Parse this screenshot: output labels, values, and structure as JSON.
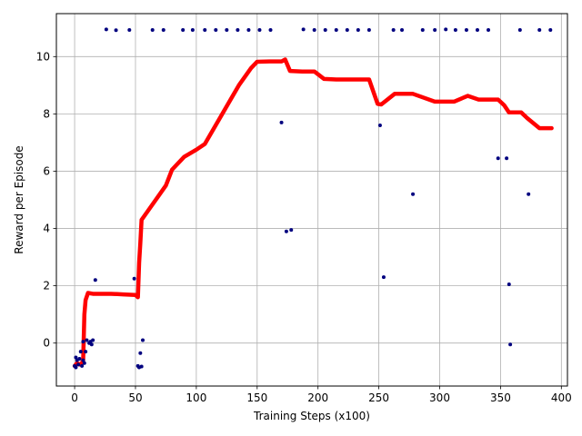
{
  "chart_data": {
    "type": "scatter",
    "title": "",
    "xlabel": "Training Steps (x100)",
    "ylabel": "Reward per Episode",
    "xlim": [
      -15,
      405
    ],
    "ylim": [
      -1.5,
      11.5
    ],
    "xticks": [
      0,
      50,
      100,
      150,
      200,
      250,
      300,
      350,
      400
    ],
    "yticks": [
      0,
      2,
      4,
      6,
      8,
      10
    ],
    "grid": true,
    "colors": {
      "points": "#00007f",
      "line": "#ff0000",
      "grid": "#b0b0b0"
    },
    "series": [
      {
        "kind": "scatter",
        "points": [
          [
            0,
            -0.8
          ],
          [
            1,
            -0.85
          ],
          [
            1,
            -0.5
          ],
          [
            2,
            -0.6
          ],
          [
            3,
            -0.75
          ],
          [
            4,
            -0.55
          ],
          [
            5,
            -0.3
          ],
          [
            6,
            -0.8
          ],
          [
            7,
            -0.6
          ],
          [
            7,
            0.05
          ],
          [
            8,
            -0.7
          ],
          [
            9,
            -0.3
          ],
          [
            10,
            0.1
          ],
          [
            12,
            0.0
          ],
          [
            13,
            0.05
          ],
          [
            14,
            -0.05
          ],
          [
            15,
            0.1
          ],
          [
            17,
            2.2
          ],
          [
            26,
            10.95
          ],
          [
            34,
            10.92
          ],
          [
            45,
            10.93
          ],
          [
            49,
            2.25
          ],
          [
            52,
            -0.8
          ],
          [
            53,
            -0.85
          ],
          [
            54,
            -0.35
          ],
          [
            55,
            -0.82
          ],
          [
            56,
            0.1
          ],
          [
            64,
            10.93
          ],
          [
            73,
            10.93
          ],
          [
            89,
            10.93
          ],
          [
            97,
            10.93
          ],
          [
            107,
            10.93
          ],
          [
            116,
            10.93
          ],
          [
            125,
            10.93
          ],
          [
            134,
            10.93
          ],
          [
            143,
            10.93
          ],
          [
            152,
            10.93
          ],
          [
            161,
            10.93
          ],
          [
            170,
            7.7
          ],
          [
            174,
            3.9
          ],
          [
            178,
            3.95
          ],
          [
            188,
            10.95
          ],
          [
            197,
            10.93
          ],
          [
            206,
            10.93
          ],
          [
            215,
            10.93
          ],
          [
            224,
            10.93
          ],
          [
            233,
            10.93
          ],
          [
            242,
            10.93
          ],
          [
            251,
            7.6
          ],
          [
            254,
            2.3
          ],
          [
            262,
            10.93
          ],
          [
            269,
            10.93
          ],
          [
            278,
            5.2
          ],
          [
            286,
            10.93
          ],
          [
            296,
            10.93
          ],
          [
            305,
            10.95
          ],
          [
            313,
            10.93
          ],
          [
            322,
            10.93
          ],
          [
            331,
            10.93
          ],
          [
            340,
            10.93
          ],
          [
            348,
            6.45
          ],
          [
            355,
            6.45
          ],
          [
            357,
            2.05
          ],
          [
            358,
            -0.05
          ],
          [
            366,
            10.93
          ],
          [
            373,
            5.2
          ],
          [
            382,
            10.93
          ],
          [
            391,
            10.93
          ]
        ]
      },
      {
        "kind": "line",
        "points": [
          [
            0,
            -0.8
          ],
          [
            2,
            -0.7
          ],
          [
            4,
            -0.75
          ],
          [
            6,
            -0.7
          ],
          [
            7,
            -0.6
          ],
          [
            8,
            1.0
          ],
          [
            9,
            1.5
          ],
          [
            11,
            1.75
          ],
          [
            15,
            1.72
          ],
          [
            20,
            1.72
          ],
          [
            30,
            1.72
          ],
          [
            40,
            1.7
          ],
          [
            50,
            1.68
          ],
          [
            52,
            1.6
          ],
          [
            53,
            2.8
          ],
          [
            54,
            3.5
          ],
          [
            55,
            4.3
          ],
          [
            60,
            4.6
          ],
          [
            70,
            5.2
          ],
          [
            75,
            5.5
          ],
          [
            80,
            6.05
          ],
          [
            90,
            6.5
          ],
          [
            100,
            6.75
          ],
          [
            107,
            6.95
          ],
          [
            120,
            7.9
          ],
          [
            135,
            9.0
          ],
          [
            145,
            9.6
          ],
          [
            150,
            9.82
          ],
          [
            160,
            9.83
          ],
          [
            170,
            9.83
          ],
          [
            173,
            9.9
          ],
          [
            177,
            9.5
          ],
          [
            187,
            9.48
          ],
          [
            197,
            9.48
          ],
          [
            205,
            9.22
          ],
          [
            215,
            9.2
          ],
          [
            230,
            9.2
          ],
          [
            242,
            9.2
          ],
          [
            249,
            8.35
          ],
          [
            252,
            8.33
          ],
          [
            263,
            8.7
          ],
          [
            278,
            8.7
          ],
          [
            296,
            8.43
          ],
          [
            312,
            8.43
          ],
          [
            323,
            8.63
          ],
          [
            332,
            8.5
          ],
          [
            348,
            8.5
          ],
          [
            353,
            8.3
          ],
          [
            357,
            8.05
          ],
          [
            367,
            8.05
          ],
          [
            372,
            7.85
          ],
          [
            382,
            7.5
          ],
          [
            392,
            7.5
          ]
        ]
      }
    ]
  }
}
